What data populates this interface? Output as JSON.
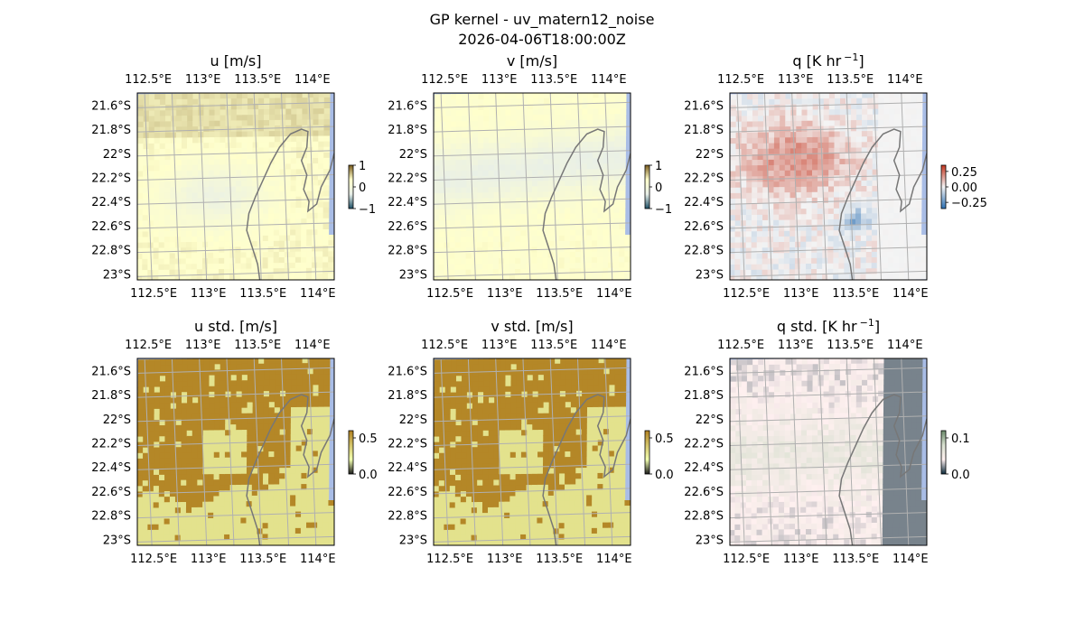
{
  "figure": {
    "title_line1": "GP kernel - uv_matern12_noise",
    "title_line2": "2026-04-06T18:00:00Z"
  },
  "map": {
    "lon_ticks": [
      "112.5°E",
      "113°E",
      "113.5°E",
      "114°E"
    ],
    "lat_ticks": [
      "21.6°S",
      "21.8°S",
      "22°S",
      "22.2°S",
      "22.4°S",
      "22.6°S",
      "22.8°S",
      "23°S"
    ],
    "lon_values": [
      112.5,
      113.0,
      113.5,
      114.0
    ],
    "lat_values": [
      -21.6,
      -21.8,
      -22.0,
      -22.2,
      -22.4,
      -22.6,
      -22.8,
      -23.0
    ],
    "extent": {
      "lon": [
        112.4,
        114.2
      ],
      "lat": [
        -23.05,
        -21.5
      ]
    },
    "gridlines": true
  },
  "colors": {
    "land_edge": "#777777",
    "ocean": "#a9bde6",
    "grid": "#b0b0b0"
  },
  "chart_data": [
    {
      "type": "heatmap",
      "id": "u",
      "title": "u [m/s]",
      "colorbar_ticks": [
        "1",
        "0",
        "−1"
      ],
      "colorbar_values": [
        1,
        0,
        -1
      ],
      "vmin": -1,
      "vmax": 1,
      "colormap": [
        "#1d4f66",
        "#e8efe8",
        "#ffffcc",
        "#7a5c1e"
      ],
      "pattern": "mean-u"
    },
    {
      "type": "heatmap",
      "id": "v",
      "title": "v [m/s]",
      "colorbar_ticks": [
        "1",
        "0",
        "−1"
      ],
      "colorbar_values": [
        1,
        0,
        -1
      ],
      "vmin": -1,
      "vmax": 1,
      "colormap": [
        "#1d4f66",
        "#e8efe8",
        "#ffffcc",
        "#7a5c1e"
      ],
      "pattern": "mean-v"
    },
    {
      "type": "heatmap",
      "id": "q",
      "title": "q [K hr",
      "title_sup": "−1",
      "title_end": "]",
      "colorbar_ticks": [
        "0.25",
        "0.00",
        "−0.25"
      ],
      "colorbar_values": [
        0.25,
        0.0,
        -0.25
      ],
      "vmin": -0.35,
      "vmax": 0.35,
      "colormap": [
        "#2b6fb3",
        "#f4f4f4",
        "#c4351f"
      ],
      "pattern": "mean-q"
    },
    {
      "type": "heatmap",
      "id": "ustd",
      "title": "u std. [m/s]",
      "colorbar_ticks": [
        "0.5",
        "0.0"
      ],
      "colorbar_values": [
        0.5,
        0.0
      ],
      "vmin": 0,
      "vmax": 0.6,
      "colormap": [
        "#1a1a1a",
        "#f2ffb0",
        "#d4c46a",
        "#b08020"
      ],
      "pattern": "std-uv"
    },
    {
      "type": "heatmap",
      "id": "vstd",
      "title": "v std. [m/s]",
      "colorbar_ticks": [
        "0.5",
        "0.0"
      ],
      "colorbar_values": [
        0.5,
        0.0
      ],
      "vmin": 0,
      "vmax": 0.6,
      "colormap": [
        "#1a1a1a",
        "#f2ffb0",
        "#d4c46a",
        "#b08020"
      ],
      "pattern": "std-uv"
    },
    {
      "type": "heatmap",
      "id": "qstd",
      "title": "q std. [K hr",
      "title_sup": "−1",
      "title_end": "]",
      "colorbar_ticks": [
        "0.1",
        "0.0"
      ],
      "colorbar_values": [
        0.1,
        0.0
      ],
      "vmin": 0,
      "vmax": 0.12,
      "colormap": [
        "#0a2a3a",
        "#fff0f0",
        "#d8e0d0",
        "#6a8a6a"
      ],
      "pattern": "std-q"
    }
  ]
}
